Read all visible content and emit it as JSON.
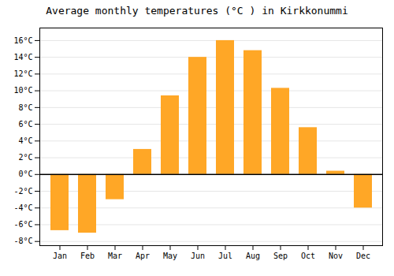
{
  "chart_data": {
    "type": "bar",
    "title": "Average monthly temperatures (°C ) in Kirkkonummi",
    "categories": [
      "Jan",
      "Feb",
      "Mar",
      "Apr",
      "May",
      "Jun",
      "Jul",
      "Aug",
      "Sep",
      "Oct",
      "Nov",
      "Dec"
    ],
    "values": [
      -6.7,
      -7.0,
      -3.0,
      3.0,
      9.4,
      14.0,
      16.0,
      14.8,
      10.3,
      5.6,
      0.4,
      -4.0
    ],
    "color": "#FFA726",
    "ylim": [
      -8.5,
      17.5
    ],
    "yticks": [
      {
        "value": -8,
        "label": "-8°C"
      },
      {
        "value": -6,
        "label": "-6°C"
      },
      {
        "value": -4,
        "label": "-4°C"
      },
      {
        "value": -2,
        "label": "-2°C"
      },
      {
        "value": 0,
        "label": "0°C"
      },
      {
        "value": 2,
        "label": "2°C"
      },
      {
        "value": 4,
        "label": "4°C"
      },
      {
        "value": 6,
        "label": "6°C"
      },
      {
        "value": 8,
        "label": "8°C"
      },
      {
        "value": 10,
        "label": "10°C"
      },
      {
        "value": 12,
        "label": "12°C"
      },
      {
        "value": 14,
        "label": "14°C"
      },
      {
        "value": 16,
        "label": "16°C"
      }
    ],
    "grid": true
  }
}
